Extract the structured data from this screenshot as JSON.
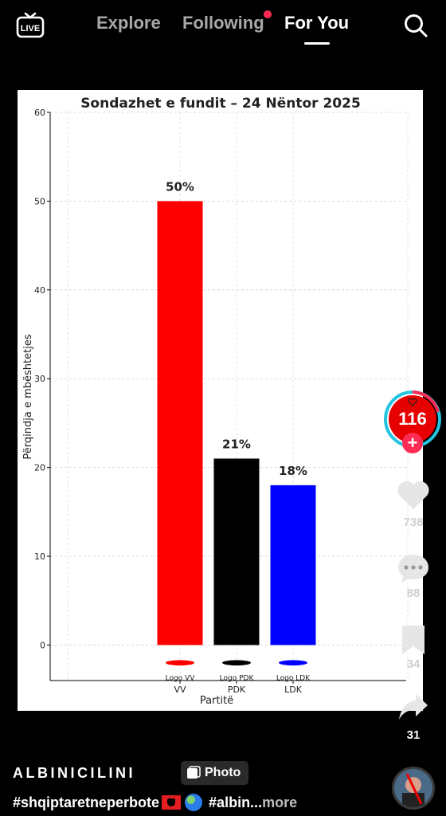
{
  "nav": {
    "live_label": "LIVE",
    "tabs": [
      {
        "label": "Explore",
        "active": false
      },
      {
        "label": "Following",
        "active": false,
        "has_dot": true
      },
      {
        "label": "For You",
        "active": true
      }
    ],
    "search_icon": "search-icon"
  },
  "chart_data": {
    "type": "bar",
    "title": "Sondazhet e fundit – 24 Nëntor 2025",
    "xlabel": "Partitë",
    "ylabel": "Përqindja e mbështetjes",
    "categories": [
      "VV",
      "PDK",
      "LDK"
    ],
    "values": [
      50,
      21,
      18
    ],
    "value_labels": [
      "50%",
      "21%",
      "18%"
    ],
    "logo_labels": [
      "Logo VV",
      "Logo PDK",
      "Logo LDK"
    ],
    "colors": [
      "#ff0000",
      "#000000",
      "#0000ff"
    ],
    "yticks": [
      0,
      10,
      20,
      30,
      40,
      50,
      60
    ],
    "ylim": [
      -4,
      60
    ],
    "grid": true
  },
  "rail": {
    "avatar_count": "116",
    "likes": "738",
    "comments": "88",
    "saves": "34",
    "shares": "31"
  },
  "post": {
    "username": "ALBINICILINI",
    "badge_label": "Photo",
    "caption_hashtag": "#shqiptaretneperbote",
    "caption_tail": "#albin...",
    "more_label": " more"
  }
}
